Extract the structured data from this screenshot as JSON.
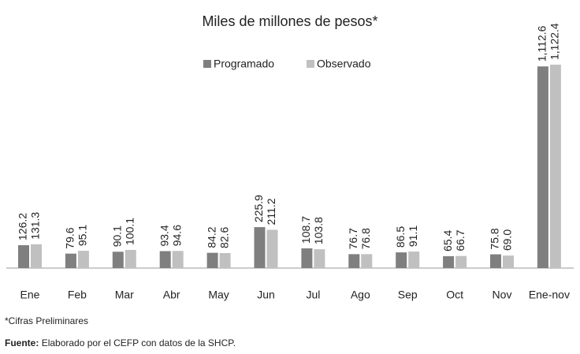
{
  "chart_data": {
    "type": "bar",
    "title": "Miles de millones de pesos*",
    "categories": [
      "Ene",
      "Feb",
      "Mar",
      "Abr",
      "May",
      "Jun",
      "Jul",
      "Ago",
      "Sep",
      "Oct",
      "Nov",
      "Ene-nov"
    ],
    "series": [
      {
        "name": "Programado",
        "color": "#7f7f7f",
        "values": [
          126.2,
          79.6,
          90.1,
          93.4,
          84.2,
          225.9,
          108.7,
          76.7,
          86.5,
          65.4,
          75.8,
          1112.6
        ],
        "value_labels": [
          "126.2",
          "79.6",
          "90.1",
          "93.4",
          "84.2",
          "225.9",
          "108.7",
          "76.7",
          "86.5",
          "65.4",
          "75.8",
          "1,112.6"
        ]
      },
      {
        "name": "Observado",
        "color": "#c0c0c0",
        "values": [
          131.3,
          95.1,
          100.1,
          94.6,
          82.6,
          211.2,
          103.8,
          76.8,
          91.1,
          66.7,
          69.0,
          1122.4
        ],
        "value_labels": [
          "131.3",
          "95.1",
          "100.1",
          "94.6",
          "82.6",
          "211.2",
          "103.8",
          "76.8",
          "91.1",
          "66.7",
          "69.0",
          "1,122.4"
        ]
      }
    ],
    "legend": "top",
    "note": "*Cifras Preliminares",
    "source_label": "Fuente:",
    "source": "Elaborado por el CEFP con datos de la SHCP."
  }
}
